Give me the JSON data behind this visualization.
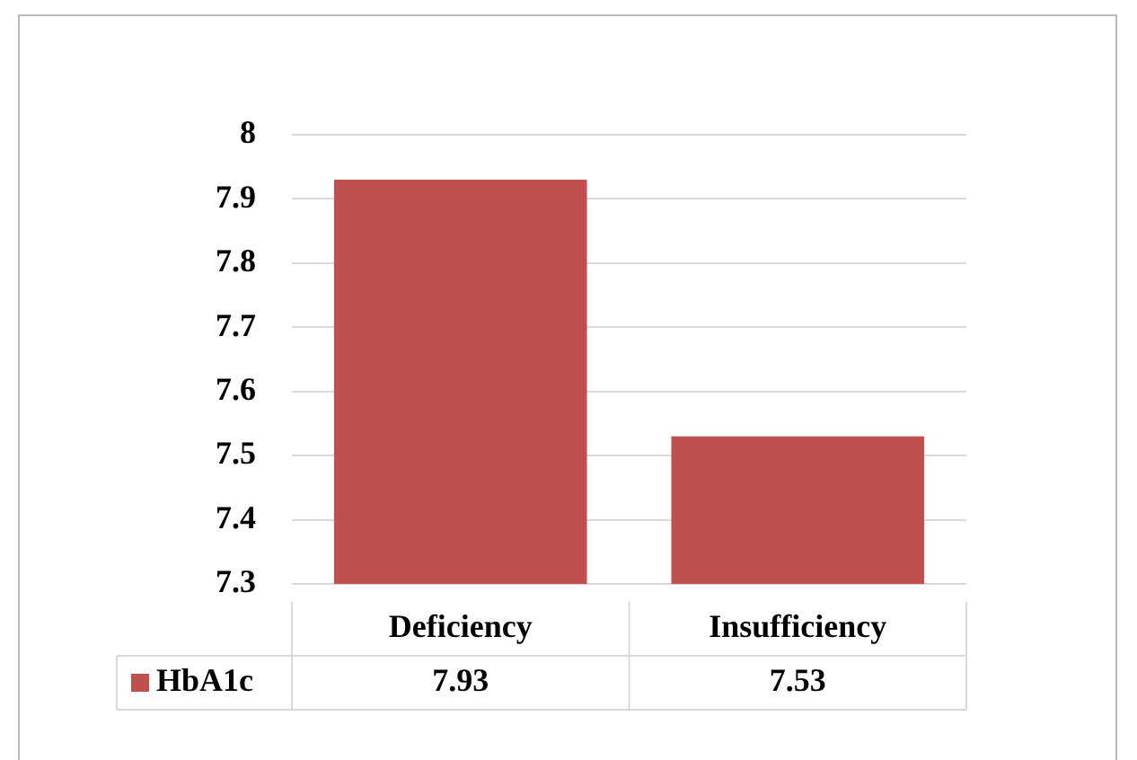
{
  "chart_data": {
    "type": "bar",
    "categories": [
      "Deficiency",
      "Insufficiency"
    ],
    "series": [
      {
        "name": "HbA1c",
        "color": "#c0504d",
        "values": [
          7.93,
          7.53
        ]
      }
    ],
    "ylim": [
      7.3,
      8
    ],
    "yticks": [
      7.3,
      7.4,
      7.5,
      7.6,
      7.7,
      7.8,
      7.9,
      8
    ],
    "grid": "y",
    "data_labels": true
  }
}
